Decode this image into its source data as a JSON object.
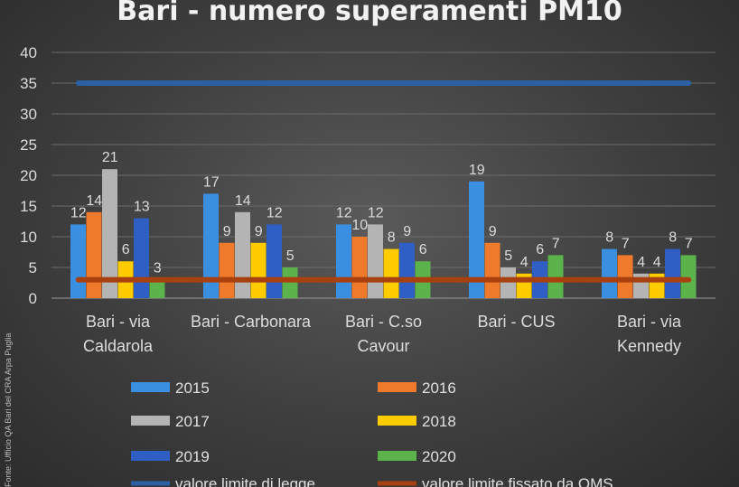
{
  "chart_data": {
    "type": "bar",
    "title": "Bari - numero superamenti PM10",
    "xlabel": "",
    "ylabel": "",
    "ylim": [
      0,
      40
    ],
    "yticks": [
      0,
      5,
      10,
      15,
      20,
      25,
      30,
      35,
      40
    ],
    "grid": true,
    "legend_position": "bottom",
    "categories": [
      [
        "Bari - via",
        "Caldarola"
      ],
      [
        "Bari - Carbonara"
      ],
      [
        "Bari -  C.so",
        "Cavour"
      ],
      [
        "Bari - CUS"
      ],
      [
        "Bari -  via",
        "Kennedy"
      ]
    ],
    "series": [
      {
        "name": "2015",
        "color": "#3b8fe0",
        "values": [
          12,
          17,
          12,
          19,
          8
        ]
      },
      {
        "name": "2016",
        "color": "#f07a2b",
        "values": [
          14,
          9,
          10,
          9,
          7
        ]
      },
      {
        "name": "2017",
        "color": "#b4b4b4",
        "values": [
          21,
          14,
          12,
          5,
          4
        ]
      },
      {
        "name": "2018",
        "color": "#ffcc00",
        "values": [
          6,
          9,
          8,
          4,
          4
        ]
      },
      {
        "name": "2019",
        "color": "#2f5fc4",
        "values": [
          13,
          12,
          9,
          6,
          8
        ]
      },
      {
        "name": "2020",
        "color": "#5db34b",
        "values": [
          3,
          5,
          6,
          7,
          7
        ]
      }
    ],
    "reference_lines": [
      {
        "label": "valore limite di legge",
        "value": 35,
        "color": "#2c5fa3"
      },
      {
        "label": "valore limite fissato da OMS",
        "value": 3,
        "color": "#a8400f"
      }
    ]
  },
  "source_note": "Fonte: Ufficio QA Bari del CRA Arpa Puglia"
}
